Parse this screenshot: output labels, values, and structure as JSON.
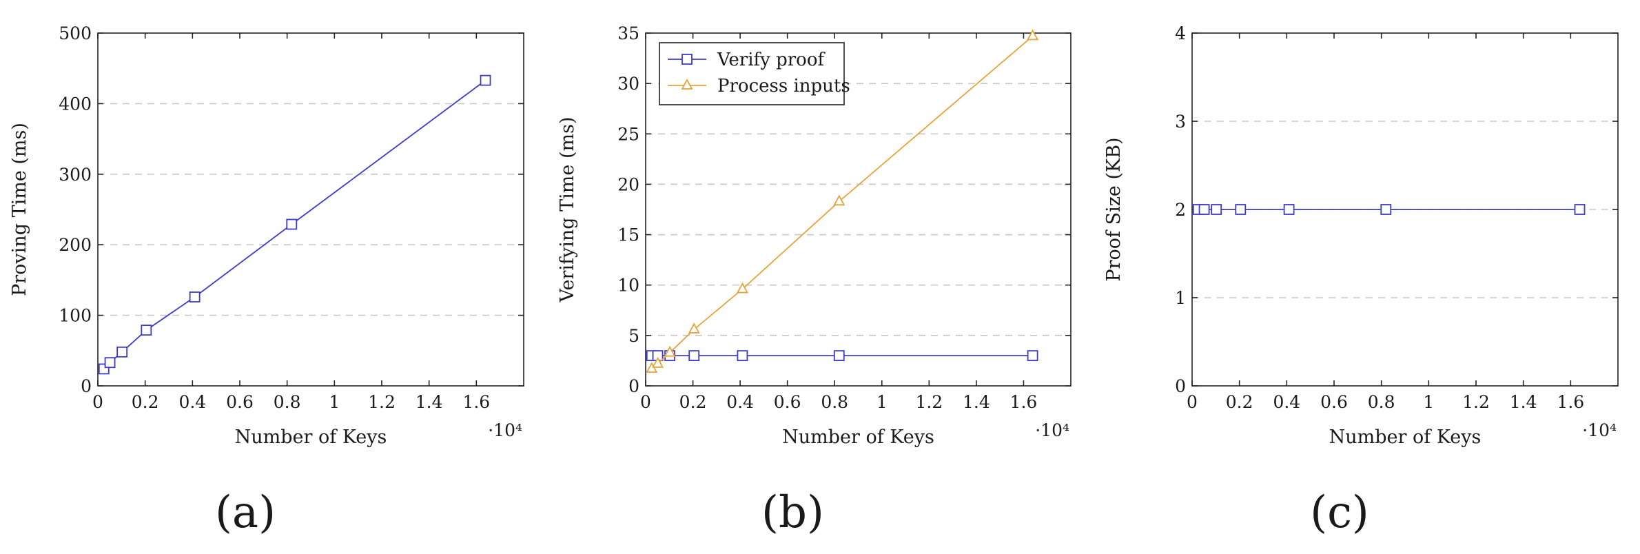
{
  "chart_data": [
    {
      "type": "line",
      "caption": "(a)",
      "xlabel": "Number of Keys",
      "ylabel": "Proving Time (ms)",
      "x_scale_note": "·10⁴",
      "xlim": [
        0,
        1.8
      ],
      "ylim": [
        0,
        500
      ],
      "xticks": [
        "0",
        "0.2",
        "0.4",
        "0.6",
        "0.8",
        "1",
        "1.2",
        "1.4",
        "1.6"
      ],
      "yticks": [
        "0",
        "100",
        "200",
        "300",
        "400",
        "500"
      ],
      "grid": "horizontal dashed",
      "series": [
        {
          "color": "#3b3bd1",
          "marker": "square",
          "x": [
            0.0256,
            0.0512,
            0.1024,
            0.2048,
            0.4096,
            0.8192,
            1.6384
          ],
          "y": [
            24,
            33,
            48,
            79,
            126,
            229,
            433
          ]
        }
      ]
    },
    {
      "type": "line",
      "caption": "(b)",
      "xlabel": "Number of Keys",
      "ylabel": "Verifying Time (ms)",
      "x_scale_note": "·10⁴",
      "xlim": [
        0,
        1.8
      ],
      "ylim": [
        0,
        35
      ],
      "xticks": [
        "0",
        "0.2",
        "0.4",
        "0.6",
        "0.8",
        "1",
        "1.2",
        "1.4",
        "1.6"
      ],
      "yticks": [
        "0",
        "5",
        "10",
        "15",
        "20",
        "25",
        "30",
        "35"
      ],
      "grid": "horizontal dashed",
      "legend": "top-left",
      "series": [
        {
          "name": "Verify proof",
          "color": "#3b3bd1",
          "marker": "square",
          "x": [
            0.0256,
            0.0512,
            0.1024,
            0.2048,
            0.4096,
            0.8192,
            1.6384
          ],
          "y": [
            3,
            3,
            3,
            3,
            3,
            3,
            3
          ]
        },
        {
          "name": "Process inputs",
          "color": "#e8a33a",
          "marker": "triangle",
          "x": [
            0.0256,
            0.0512,
            0.1024,
            0.2048,
            0.4096,
            0.8192,
            1.6384
          ],
          "y": [
            1.7,
            2.2,
            3.3,
            5.6,
            9.6,
            18.3,
            34.7
          ]
        }
      ]
    },
    {
      "type": "line",
      "caption": "(c)",
      "xlabel": "Number of Keys",
      "ylabel": "Proof Size (KB)",
      "x_scale_note": "·10⁴",
      "xlim": [
        0,
        1.8
      ],
      "ylim": [
        0,
        4
      ],
      "xticks": [
        "0",
        "0.2",
        "0.4",
        "0.6",
        "0.8",
        "1",
        "1.2",
        "1.4",
        "1.6"
      ],
      "yticks": [
        "0",
        "1",
        "2",
        "3",
        "4"
      ],
      "grid": "horizontal dashed",
      "series": [
        {
          "color": "#3b3bd1",
          "marker": "square",
          "x": [
            0.0256,
            0.0512,
            0.1024,
            0.2048,
            0.4096,
            0.8192,
            1.6384
          ],
          "y": [
            2,
            2,
            2,
            2,
            2,
            2,
            2
          ]
        }
      ]
    }
  ]
}
